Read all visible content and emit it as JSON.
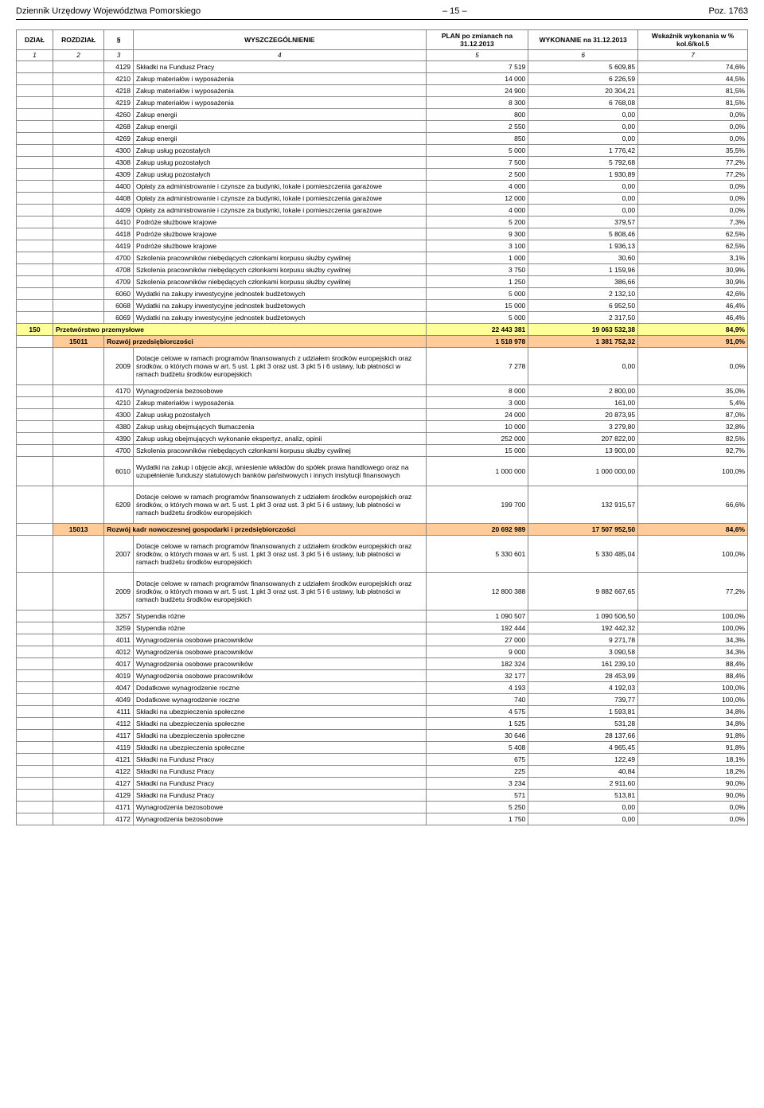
{
  "header": {
    "left": "Dziennik Urzędowy Województwa Pomorskiego",
    "center": "– 15 –",
    "right": "Poz. 1763"
  },
  "thead": {
    "c1": "DZIAŁ",
    "c2": "ROZDZIAŁ",
    "c3": "§",
    "c4": "WYSZCZEGÓLNIENIE",
    "c5": "PLAN po zmianach na 31.12.2013",
    "c6": "WYKONANIE na 31.12.2013",
    "c7": "Wskaźnik wykonania w % kol.6/kol.5"
  },
  "colnums": [
    "1",
    "2",
    "3",
    "4",
    "5",
    "6",
    "7"
  ],
  "colors": {
    "yellow": "#ffff99",
    "peach": "#ffcc99"
  },
  "rows": [
    {
      "p": "4129",
      "d": "Składki na Fundusz Pracy",
      "v1": "7 519",
      "v2": "5 609,85",
      "v3": "74,6%"
    },
    {
      "p": "4210",
      "d": "Zakup materiałów i wyposażenia",
      "v1": "14 000",
      "v2": "6 226,59",
      "v3": "44,5%"
    },
    {
      "p": "4218",
      "d": "Zakup materiałów i wyposażenia",
      "v1": "24 900",
      "v2": "20 304,21",
      "v3": "81,5%"
    },
    {
      "p": "4219",
      "d": "Zakup materiałów i wyposażenia",
      "v1": "8 300",
      "v2": "6 768,08",
      "v3": "81,5%"
    },
    {
      "p": "4260",
      "d": "Zakup energii",
      "v1": "800",
      "v2": "0,00",
      "v3": "0,0%"
    },
    {
      "p": "4268",
      "d": "Zakup energii",
      "v1": "2 550",
      "v2": "0,00",
      "v3": "0,0%"
    },
    {
      "p": "4269",
      "d": "Zakup energii",
      "v1": "850",
      "v2": "0,00",
      "v3": "0,0%"
    },
    {
      "p": "4300",
      "d": "Zakup usług pozostałych",
      "v1": "5 000",
      "v2": "1 776,42",
      "v3": "35,5%"
    },
    {
      "p": "4308",
      "d": "Zakup usług pozostałych",
      "v1": "7 500",
      "v2": "5 792,68",
      "v3": "77,2%"
    },
    {
      "p": "4309",
      "d": "Zakup usług pozostałych",
      "v1": "2 500",
      "v2": "1 930,89",
      "v3": "77,2%"
    },
    {
      "p": "4400",
      "d": "Opłaty za administrowanie i czynsze za budynki, lokale i pomieszczenia garażowe",
      "v1": "4 000",
      "v2": "0,00",
      "v3": "0,0%"
    },
    {
      "p": "4408",
      "d": "Opłaty za administrowanie i czynsze za budynki, lokale i pomieszczenia garażowe",
      "v1": "12 000",
      "v2": "0,00",
      "v3": "0,0%"
    },
    {
      "p": "4409",
      "d": "Opłaty za administrowanie i czynsze za budynki, lokale i pomieszczenia garażowe",
      "v1": "4 000",
      "v2": "0,00",
      "v3": "0,0%"
    },
    {
      "p": "4410",
      "d": "Podróże służbowe krajowe",
      "v1": "5 200",
      "v2": "379,57",
      "v3": "7,3%"
    },
    {
      "p": "4418",
      "d": "Podróże służbowe krajowe",
      "v1": "9 300",
      "v2": "5 808,46",
      "v3": "62,5%"
    },
    {
      "p": "4419",
      "d": "Podróże służbowe krajowe",
      "v1": "3 100",
      "v2": "1 936,13",
      "v3": "62,5%"
    },
    {
      "p": "4700",
      "d": "Szkolenia pracowników niebędących członkami korpusu służby cywilnej",
      "v1": "1 000",
      "v2": "30,60",
      "v3": "3,1%"
    },
    {
      "p": "4708",
      "d": "Szkolenia pracowników niebędących członkami korpusu służby cywilnej",
      "v1": "3 750",
      "v2": "1 159,96",
      "v3": "30,9%"
    },
    {
      "p": "4709",
      "d": "Szkolenia pracowników niebędących członkami korpusu służby cywilnej",
      "v1": "1 250",
      "v2": "386,66",
      "v3": "30,9%"
    },
    {
      "p": "6060",
      "d": "Wydatki na zakupy inwestycyjne jednostek budżetowych",
      "v1": "5 000",
      "v2": "2 132,10",
      "v3": "42,6%"
    },
    {
      "p": "6068",
      "d": "Wydatki na zakupy inwestycyjne jednostek budżetowych",
      "v1": "15 000",
      "v2": "6 952,50",
      "v3": "46,4%"
    },
    {
      "p": "6069",
      "d": "Wydatki na zakupy inwestycyjne jednostek budżetowych",
      "v1": "5 000",
      "v2": "2 317,50",
      "v3": "46,4%"
    },
    {
      "type": "yellow",
      "c1": "150",
      "d": "Przetwórstwo przemysłowe",
      "v1": "22 443 381",
      "v2": "19 063 532,38",
      "v3": "84,9%"
    },
    {
      "type": "peach",
      "c2": "15011",
      "d": "Rozwój przedsiębiorczości",
      "v1": "1 518 978",
      "v2": "1 381 752,32",
      "v3": "91,0%"
    },
    {
      "tall": true,
      "p": "2009",
      "d": "Dotacje celowe w ramach programów finansowanych z udziałem środków europejskich oraz środków, o których mowa w art. 5 ust. 1 pkt 3 oraz ust. 3 pkt 5 i 6 ustawy, lub płatności w ramach budżetu środków europejskich",
      "v1": "7 278",
      "v2": "0,00",
      "v3": "0,0%"
    },
    {
      "p": "4170",
      "d": "Wynagrodzenia bezosobowe",
      "v1": "8 000",
      "v2": "2 800,00",
      "v3": "35,0%"
    },
    {
      "p": "4210",
      "d": "Zakup materiałów i wyposażenia",
      "v1": "3 000",
      "v2": "161,00",
      "v3": "5,4%"
    },
    {
      "p": "4300",
      "d": "Zakup usług pozostałych",
      "v1": "24 000",
      "v2": "20 873,95",
      "v3": "87,0%"
    },
    {
      "p": "4380",
      "d": "Zakup usług obejmujących tłumaczenia",
      "v1": "10 000",
      "v2": "3 279,80",
      "v3": "32,8%"
    },
    {
      "p": "4390",
      "d": "Zakup usług obejmujących wykonanie ekspertyz, analiz, opinii",
      "v1": "252 000",
      "v2": "207 822,00",
      "v3": "82,5%"
    },
    {
      "p": "4700",
      "d": "Szkolenia pracowników niebędących członkami korpusu służby cywilnej",
      "v1": "15 000",
      "v2": "13 900,00",
      "v3": "92,7%"
    },
    {
      "tall": true,
      "p": "6010",
      "d": "Wydatki na zakup i objęcie akcji, wniesienie wkładów do spółek prawa handlowego oraz na uzupełnienie funduszy statutowych banków państwowych i innych instytucji finansowych",
      "v1": "1 000 000",
      "v2": "1 000 000,00",
      "v3": "100,0%"
    },
    {
      "tall": true,
      "p": "6209",
      "d": "Dotacje celowe w ramach programów finansowanych z udziałem środków europejskich oraz środków, o których mowa w art. 5 ust. 1 pkt 3 oraz ust. 3 pkt 5 i 6 ustawy, lub płatności w ramach budżetu środków europejskich",
      "v1": "199 700",
      "v2": "132 915,57",
      "v3": "66,6%"
    },
    {
      "type": "peach",
      "c2": "15013",
      "d": "Rozwój kadr nowoczesnej gospodarki i przedsiębiorczości",
      "v1": "20 692 989",
      "v2": "17 507 952,50",
      "v3": "84,6%"
    },
    {
      "tall": true,
      "p": "2007",
      "d": "Dotacje celowe w ramach programów finansowanych z udziałem środków europejskich oraz środków, o których mowa w art. 5 ust. 1 pkt 3 oraz ust. 3 pkt 5 i 6 ustawy, lub płatności w ramach budżetu środków europejskich",
      "v1": "5 330 601",
      "v2": "5 330 485,04",
      "v3": "100,0%"
    },
    {
      "tall": true,
      "p": "2009",
      "d": "Dotacje celowe w ramach programów finansowanych z udziałem środków europejskich oraz środków, o których mowa w art. 5 ust. 1 pkt 3 oraz ust. 3 pkt 5 i 6 ustawy, lub płatności w ramach budżetu środków europejskich",
      "v1": "12 800 388",
      "v2": "9 882 667,65",
      "v3": "77,2%"
    },
    {
      "p": "3257",
      "d": "Stypendia różne",
      "v1": "1 090 507",
      "v2": "1 090 506,50",
      "v3": "100,0%"
    },
    {
      "p": "3259",
      "d": "Stypendia różne",
      "v1": "192 444",
      "v2": "192 442,32",
      "v3": "100,0%"
    },
    {
      "p": "4011",
      "d": "Wynagrodzenia osobowe pracowników",
      "v1": "27 000",
      "v2": "9 271,78",
      "v3": "34,3%"
    },
    {
      "p": "4012",
      "d": "Wynagrodzenia osobowe pracowników",
      "v1": "9 000",
      "v2": "3 090,58",
      "v3": "34,3%"
    },
    {
      "p": "4017",
      "d": "Wynagrodzenia osobowe pracowników",
      "v1": "182 324",
      "v2": "161 239,10",
      "v3": "88,4%"
    },
    {
      "p": "4019",
      "d": "Wynagrodzenia osobowe pracowników",
      "v1": "32 177",
      "v2": "28 453,99",
      "v3": "88,4%"
    },
    {
      "p": "4047",
      "d": "Dodatkowe wynagrodzenie roczne",
      "v1": "4 193",
      "v2": "4 192,03",
      "v3": "100,0%"
    },
    {
      "p": "4049",
      "d": "Dodatkowe wynagrodzenie roczne",
      "v1": "740",
      "v2": "739,77",
      "v3": "100,0%"
    },
    {
      "p": "4111",
      "d": "Składki na ubezpieczenia społeczne",
      "v1": "4 575",
      "v2": "1 593,81",
      "v3": "34,8%"
    },
    {
      "p": "4112",
      "d": "Składki na ubezpieczenia społeczne",
      "v1": "1 525",
      "v2": "531,28",
      "v3": "34,8%"
    },
    {
      "p": "4117",
      "d": "Składki na ubezpieczenia społeczne",
      "v1": "30 646",
      "v2": "28 137,66",
      "v3": "91,8%"
    },
    {
      "p": "4119",
      "d": "Składki na ubezpieczenia społeczne",
      "v1": "5 408",
      "v2": "4 965,45",
      "v3": "91,8%"
    },
    {
      "p": "4121",
      "d": "Składki na Fundusz Pracy",
      "v1": "675",
      "v2": "122,49",
      "v3": "18,1%"
    },
    {
      "p": "4122",
      "d": "Składki na Fundusz Pracy",
      "v1": "225",
      "v2": "40,84",
      "v3": "18,2%"
    },
    {
      "p": "4127",
      "d": "Składki na Fundusz Pracy",
      "v1": "3 234",
      "v2": "2 911,60",
      "v3": "90,0%"
    },
    {
      "p": "4129",
      "d": "Składki na Fundusz Pracy",
      "v1": "571",
      "v2": "513,81",
      "v3": "90,0%"
    },
    {
      "p": "4171",
      "d": "Wynagrodzenia bezosobowe",
      "v1": "5 250",
      "v2": "0,00",
      "v3": "0,0%"
    },
    {
      "p": "4172",
      "d": "Wynagrodzenia bezosobowe",
      "v1": "1 750",
      "v2": "0,00",
      "v3": "0,0%"
    }
  ]
}
